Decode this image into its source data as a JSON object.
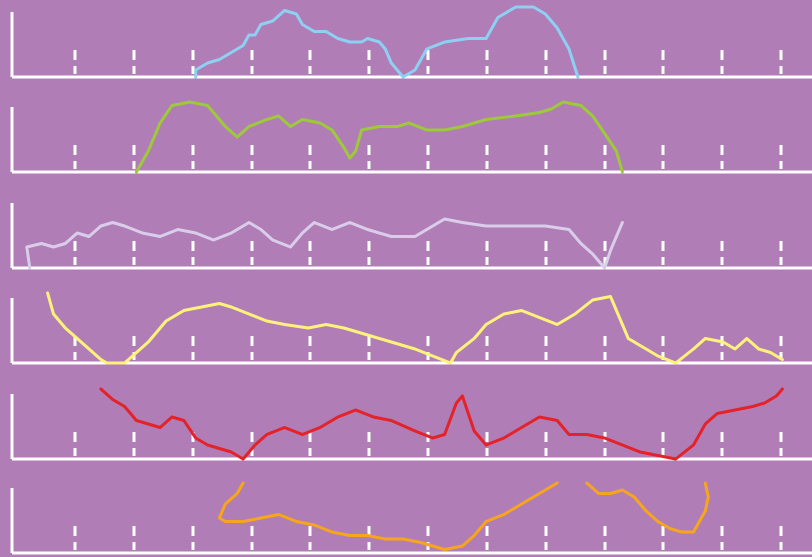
{
  "colors": {
    "background": "#b07db6",
    "axis": "#ffffff",
    "series": [
      "#8ed0f2",
      "#9dc93b",
      "#d9cdea",
      "#fff27a",
      "#e42228",
      "#f7a51d"
    ]
  },
  "chart_data": {
    "type": "line",
    "title": "",
    "xlabel": "",
    "ylabel": "",
    "grid": false,
    "legend": "none",
    "layout": "small-multiples",
    "xlim": [
      0,
      13.5
    ],
    "ylim": [
      0,
      1
    ],
    "x_tick_count": 13,
    "panels": [
      {
        "series": [
          {
            "color": "#8ed0f2",
            "points": [
              [
                3.1,
                0.0
              ],
              [
                3.1,
                0.1
              ],
              [
                3.3,
                0.2
              ],
              [
                3.5,
                0.25
              ],
              [
                3.7,
                0.35
              ],
              [
                3.9,
                0.45
              ],
              [
                4.0,
                0.6
              ],
              [
                4.1,
                0.6
              ],
              [
                4.2,
                0.75
              ],
              [
                4.4,
                0.8
              ],
              [
                4.6,
                0.95
              ],
              [
                4.8,
                0.9
              ],
              [
                4.9,
                0.75
              ],
              [
                5.1,
                0.65
              ],
              [
                5.3,
                0.65
              ],
              [
                5.5,
                0.55
              ],
              [
                5.7,
                0.5
              ],
              [
                5.9,
                0.5
              ],
              [
                6.0,
                0.55
              ],
              [
                6.2,
                0.5
              ],
              [
                6.3,
                0.4
              ],
              [
                6.4,
                0.2
              ],
              [
                6.5,
                0.1
              ],
              [
                6.6,
                0.0
              ],
              [
                6.8,
                0.1
              ],
              [
                6.9,
                0.25
              ],
              [
                7.0,
                0.4
              ],
              [
                7.3,
                0.5
              ],
              [
                7.7,
                0.55
              ],
              [
                8.0,
                0.55
              ],
              [
                8.2,
                0.85
              ],
              [
                8.5,
                1.0
              ],
              [
                8.8,
                1.0
              ],
              [
                9.0,
                0.9
              ],
              [
                9.2,
                0.7
              ],
              [
                9.4,
                0.4
              ],
              [
                9.55,
                0.0
              ]
            ]
          }
        ]
      },
      {
        "series": [
          {
            "color": "#9dc93b",
            "points": [
              [
                2.1,
                0.0
              ],
              [
                2.3,
                0.3
              ],
              [
                2.5,
                0.7
              ],
              [
                2.7,
                0.95
              ],
              [
                3.0,
                1.0
              ],
              [
                3.3,
                0.95
              ],
              [
                3.6,
                0.65
              ],
              [
                3.8,
                0.5
              ],
              [
                4.0,
                0.65
              ],
              [
                4.3,
                0.75
              ],
              [
                4.5,
                0.8
              ],
              [
                4.7,
                0.65
              ],
              [
                4.9,
                0.75
              ],
              [
                5.2,
                0.7
              ],
              [
                5.4,
                0.6
              ],
              [
                5.6,
                0.35
              ],
              [
                5.7,
                0.2
              ],
              [
                5.8,
                0.3
              ],
              [
                5.9,
                0.6
              ],
              [
                6.2,
                0.65
              ],
              [
                6.5,
                0.65
              ],
              [
                6.7,
                0.7
              ],
              [
                7.0,
                0.6
              ],
              [
                7.3,
                0.6
              ],
              [
                7.6,
                0.65
              ],
              [
                8.0,
                0.75
              ],
              [
                8.5,
                0.8
              ],
              [
                8.9,
                0.85
              ],
              [
                9.1,
                0.9
              ],
              [
                9.3,
                1.0
              ],
              [
                9.6,
                0.95
              ],
              [
                9.8,
                0.8
              ],
              [
                10.0,
                0.55
              ],
              [
                10.2,
                0.3
              ],
              [
                10.3,
                0.0
              ]
            ]
          }
        ]
      },
      {
        "series": [
          {
            "color": "#d9cdea",
            "points": [
              [
                0.3,
                0.0
              ],
              [
                0.25,
                0.3
              ],
              [
                0.5,
                0.35
              ],
              [
                0.7,
                0.3
              ],
              [
                0.9,
                0.35
              ],
              [
                1.1,
                0.5
              ],
              [
                1.3,
                0.45
              ],
              [
                1.5,
                0.6
              ],
              [
                1.7,
                0.65
              ],
              [
                1.9,
                0.6
              ],
              [
                2.2,
                0.5
              ],
              [
                2.5,
                0.45
              ],
              [
                2.8,
                0.55
              ],
              [
                3.1,
                0.5
              ],
              [
                3.4,
                0.4
              ],
              [
                3.7,
                0.5
              ],
              [
                4.0,
                0.65
              ],
              [
                4.2,
                0.55
              ],
              [
                4.4,
                0.4
              ],
              [
                4.7,
                0.3
              ],
              [
                4.9,
                0.5
              ],
              [
                5.1,
                0.65
              ],
              [
                5.4,
                0.55
              ],
              [
                5.7,
                0.65
              ],
              [
                6.0,
                0.55
              ],
              [
                6.4,
                0.45
              ],
              [
                6.8,
                0.45
              ],
              [
                7.1,
                0.6
              ],
              [
                7.3,
                0.7
              ],
              [
                7.6,
                0.65
              ],
              [
                8.0,
                0.6
              ],
              [
                8.5,
                0.6
              ],
              [
                9.0,
                0.6
              ],
              [
                9.4,
                0.55
              ],
              [
                9.6,
                0.35
              ],
              [
                9.8,
                0.2
              ],
              [
                10.0,
                0.0
              ],
              [
                10.1,
                0.25
              ],
              [
                10.2,
                0.45
              ],
              [
                10.3,
                0.65
              ]
            ]
          }
        ]
      },
      {
        "series": [
          {
            "color": "#fff27a",
            "points": [
              [
                0.6,
                1.0
              ],
              [
                0.7,
                0.7
              ],
              [
                0.9,
                0.5
              ],
              [
                1.1,
                0.35
              ],
              [
                1.3,
                0.2
              ],
              [
                1.5,
                0.05
              ],
              [
                1.6,
                0.0
              ],
              [
                1.9,
                0.0
              ],
              [
                2.3,
                0.3
              ],
              [
                2.6,
                0.6
              ],
              [
                2.9,
                0.75
              ],
              [
                3.2,
                0.8
              ],
              [
                3.5,
                0.85
              ],
              [
                3.7,
                0.8
              ],
              [
                4.0,
                0.7
              ],
              [
                4.3,
                0.6
              ],
              [
                4.6,
                0.55
              ],
              [
                5.0,
                0.5
              ],
              [
                5.3,
                0.55
              ],
              [
                5.6,
                0.5
              ],
              [
                6.0,
                0.4
              ],
              [
                6.4,
                0.3
              ],
              [
                6.8,
                0.2
              ],
              [
                7.1,
                0.1
              ],
              [
                7.4,
                0.0
              ],
              [
                7.5,
                0.15
              ],
              [
                7.8,
                0.35
              ],
              [
                8.0,
                0.55
              ],
              [
                8.3,
                0.7
              ],
              [
                8.6,
                0.75
              ],
              [
                8.9,
                0.65
              ],
              [
                9.2,
                0.55
              ],
              [
                9.5,
                0.7
              ],
              [
                9.8,
                0.9
              ],
              [
                10.1,
                0.95
              ],
              [
                10.3,
                0.55
              ],
              [
                10.4,
                0.35
              ],
              [
                10.7,
                0.2
              ],
              [
                10.9,
                0.1
              ],
              [
                11.2,
                0.0
              ],
              [
                11.5,
                0.2
              ],
              [
                11.7,
                0.35
              ],
              [
                12.0,
                0.3
              ],
              [
                12.2,
                0.2
              ],
              [
                12.4,
                0.35
              ],
              [
                12.6,
                0.2
              ],
              [
                12.8,
                0.15
              ],
              [
                13.0,
                0.05
              ]
            ]
          }
        ]
      },
      {
        "series": [
          {
            "color": "#e42228",
            "points": [
              [
                1.5,
                1.0
              ],
              [
                1.7,
                0.85
              ],
              [
                1.9,
                0.75
              ],
              [
                2.1,
                0.55
              ],
              [
                2.3,
                0.5
              ],
              [
                2.5,
                0.45
              ],
              [
                2.7,
                0.6
              ],
              [
                2.9,
                0.55
              ],
              [
                3.1,
                0.3
              ],
              [
                3.3,
                0.2
              ],
              [
                3.5,
                0.15
              ],
              [
                3.7,
                0.1
              ],
              [
                3.9,
                0.0
              ],
              [
                4.1,
                0.2
              ],
              [
                4.3,
                0.35
              ],
              [
                4.6,
                0.45
              ],
              [
                4.9,
                0.35
              ],
              [
                5.2,
                0.45
              ],
              [
                5.5,
                0.6
              ],
              [
                5.8,
                0.7
              ],
              [
                6.1,
                0.6
              ],
              [
                6.4,
                0.55
              ],
              [
                6.8,
                0.4
              ],
              [
                7.1,
                0.3
              ],
              [
                7.3,
                0.35
              ],
              [
                7.5,
                0.8
              ],
              [
                7.6,
                0.9
              ],
              [
                7.8,
                0.4
              ],
              [
                8.0,
                0.2
              ],
              [
                8.3,
                0.3
              ],
              [
                8.6,
                0.45
              ],
              [
                8.9,
                0.6
              ],
              [
                9.2,
                0.55
              ],
              [
                9.4,
                0.35
              ],
              [
                9.7,
                0.35
              ],
              [
                10.0,
                0.3
              ],
              [
                10.3,
                0.2
              ],
              [
                10.6,
                0.1
              ],
              [
                10.9,
                0.05
              ],
              [
                11.2,
                0.0
              ],
              [
                11.5,
                0.2
              ],
              [
                11.7,
                0.5
              ],
              [
                11.9,
                0.65
              ],
              [
                12.2,
                0.7
              ],
              [
                12.5,
                0.75
              ],
              [
                12.7,
                0.8
              ],
              [
                12.9,
                0.9
              ],
              [
                13.0,
                1.0
              ]
            ]
          }
        ]
      },
      {
        "series": [
          {
            "color": "#f7a51d",
            "points": [
              [
                3.9,
                1.0
              ],
              [
                3.8,
                0.85
              ],
              [
                3.6,
                0.7
              ],
              [
                3.5,
                0.5
              ],
              [
                3.6,
                0.45
              ],
              [
                3.9,
                0.45
              ],
              [
                4.2,
                0.5
              ],
              [
                4.5,
                0.55
              ],
              [
                4.8,
                0.45
              ],
              [
                5.1,
                0.4
              ],
              [
                5.4,
                0.3
              ],
              [
                5.7,
                0.25
              ],
              [
                6.0,
                0.25
              ],
              [
                6.3,
                0.2
              ],
              [
                6.6,
                0.2
              ],
              [
                6.9,
                0.15
              ],
              [
                7.1,
                0.1
              ],
              [
                7.3,
                0.05
              ],
              [
                7.6,
                0.1
              ],
              [
                7.8,
                0.25
              ],
              [
                8.0,
                0.45
              ],
              [
                8.3,
                0.55
              ],
              [
                8.6,
                0.7
              ],
              [
                8.9,
                0.85
              ],
              [
                9.1,
                0.95
              ],
              [
                9.2,
                1.0
              ]
            ]
          },
          {
            "color": "#f7a51d",
            "points": [
              [
                9.7,
                1.0
              ],
              [
                9.9,
                0.85
              ],
              [
                10.1,
                0.85
              ],
              [
                10.3,
                0.9
              ],
              [
                10.5,
                0.8
              ],
              [
                10.7,
                0.6
              ],
              [
                10.9,
                0.45
              ],
              [
                11.1,
                0.35
              ],
              [
                11.3,
                0.3
              ],
              [
                11.5,
                0.3
              ],
              [
                11.6,
                0.45
              ],
              [
                11.7,
                0.6
              ],
              [
                11.75,
                0.8
              ],
              [
                11.7,
                1.0
              ]
            ]
          }
        ]
      }
    ]
  }
}
